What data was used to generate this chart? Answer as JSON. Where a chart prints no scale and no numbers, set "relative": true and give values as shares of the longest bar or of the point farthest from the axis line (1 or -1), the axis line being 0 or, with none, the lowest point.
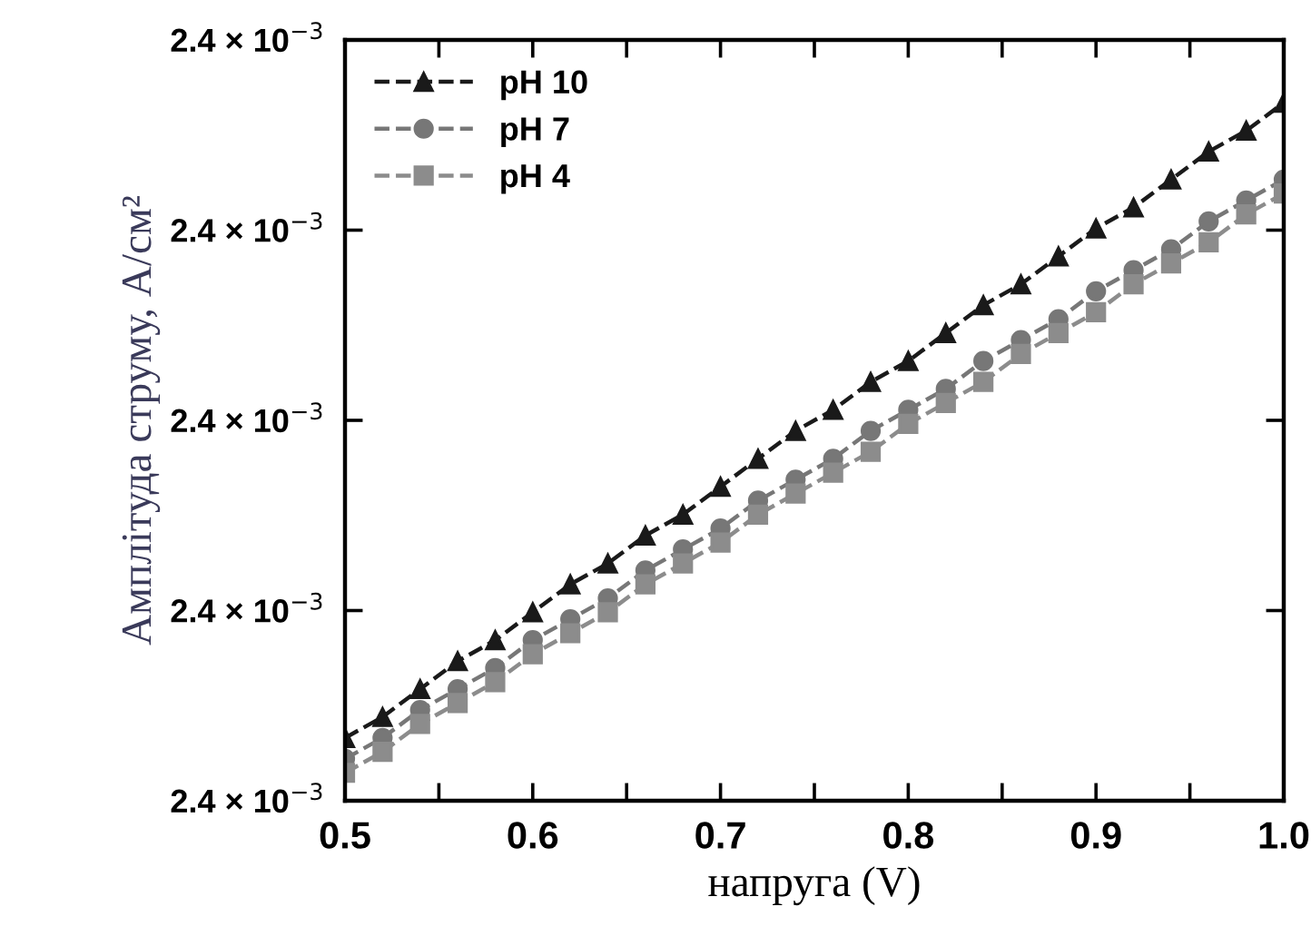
{
  "chart_data": {
    "type": "line",
    "xlabel": "напруга (V)",
    "ylabel": "Амплітуда струму, А/см²",
    "relative": true,
    "x": [
      0.5,
      0.52,
      0.54,
      0.56,
      0.58,
      0.6,
      0.62,
      0.64,
      0.66,
      0.68,
      0.7,
      0.72,
      0.74,
      0.76,
      0.78,
      0.8,
      0.82,
      0.84,
      0.86,
      0.88,
      0.9,
      0.92,
      0.94,
      0.96,
      0.98,
      1.0
    ],
    "series": [
      {
        "name": "pH 10",
        "color": "#1a1a1a",
        "marker": "triangle",
        "values": [
          0.09,
          0.12,
          0.16,
          0.2,
          0.23,
          0.27,
          0.31,
          0.34,
          0.38,
          0.41,
          0.45,
          0.49,
          0.53,
          0.56,
          0.6,
          0.63,
          0.67,
          0.71,
          0.74,
          0.78,
          0.82,
          0.85,
          0.89,
          0.93,
          0.96,
          1.0
        ]
      },
      {
        "name": "pH 7",
        "color": "#777777",
        "marker": "circle",
        "values": [
          0.06,
          0.09,
          0.13,
          0.16,
          0.19,
          0.23,
          0.26,
          0.29,
          0.33,
          0.36,
          0.39,
          0.43,
          0.46,
          0.49,
          0.53,
          0.56,
          0.59,
          0.63,
          0.66,
          0.69,
          0.73,
          0.76,
          0.79,
          0.83,
          0.86,
          0.89
        ]
      },
      {
        "name": "pH 4",
        "color": "#8c8c8c",
        "marker": "square",
        "values": [
          0.04,
          0.07,
          0.11,
          0.14,
          0.17,
          0.21,
          0.24,
          0.27,
          0.31,
          0.34,
          0.37,
          0.41,
          0.44,
          0.47,
          0.5,
          0.54,
          0.57,
          0.6,
          0.64,
          0.67,
          0.7,
          0.74,
          0.77,
          0.8,
          0.84,
          0.87
        ]
      }
    ],
    "xlim": [
      0.5,
      1.0
    ],
    "xticks": [
      0.5,
      {
        "value": 0.55,
        "label": null
      },
      0.6,
      {
        "value": 0.65,
        "label": null
      },
      0.7,
      {
        "value": 0.75,
        "label": null
      },
      0.8,
      {
        "value": 0.85,
        "label": null
      },
      0.9,
      {
        "value": 0.95,
        "label": null
      },
      {
        "value": 1.0,
        "label": "1.0"
      }
    ],
    "annotations": [
      "2.4 × 10$^{−3}$",
      "2.4 × 10$^{−3}$",
      "2.4 × 10$^{−3}$",
      "2.4 × 10$^{−3}$",
      "2.4 × 10$^{−3}$"
    ],
    "line_style": "dashed",
    "legend": "top left"
  }
}
